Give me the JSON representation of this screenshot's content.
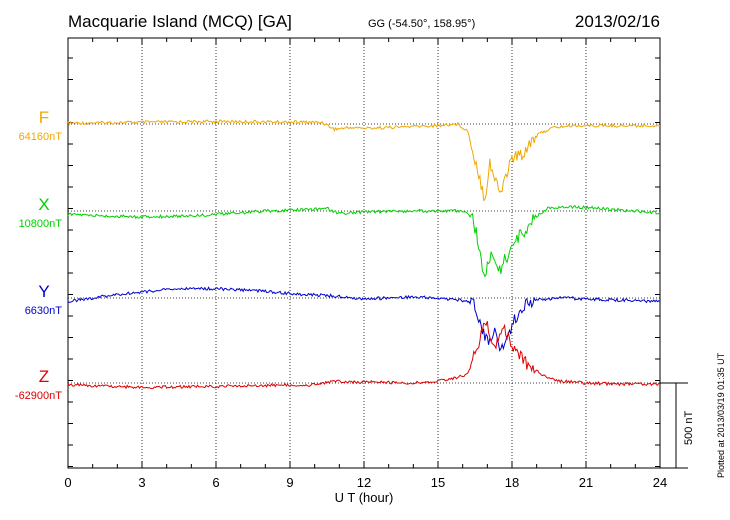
{
  "header": {
    "station": "Macquarie Island (MCQ)  [GA]",
    "coords": "GG (-54.50°, 158.95°)",
    "date": "2013/02/16"
  },
  "footer": {
    "plotted": "Plotted at 2013/03/19 01:35 UT"
  },
  "chart_data": {
    "type": "line",
    "xlabel": "U T (hour)",
    "xlim": [
      0,
      24
    ],
    "xticks": [
      "0",
      "3",
      "6",
      "9",
      "12",
      "15",
      "18",
      "21",
      "24"
    ],
    "scale_bar": {
      "label": "500 nT",
      "value_nT": 500
    },
    "grid": true,
    "series": [
      {
        "name": "F",
        "baseline_label": "64160nT",
        "baseline_nT": 64160,
        "color": "#f0a800",
        "points": [
          [
            0,
            5
          ],
          [
            3,
            10
          ],
          [
            6,
            15
          ],
          [
            9,
            12
          ],
          [
            10.3,
            10
          ],
          [
            10.8,
            -30
          ],
          [
            11.5,
            -20
          ],
          [
            12,
            -25
          ],
          [
            14,
            -15
          ],
          [
            15,
            -10
          ],
          [
            15.8,
            0
          ],
          [
            16.2,
            -40
          ],
          [
            16.6,
            -260
          ],
          [
            16.9,
            -440
          ],
          [
            17.1,
            -220
          ],
          [
            17.3,
            -330
          ],
          [
            17.55,
            -400
          ],
          [
            17.75,
            -300
          ],
          [
            18,
            -200
          ],
          [
            18.4,
            -180
          ],
          [
            18.8,
            -90
          ],
          [
            19.2,
            -50
          ],
          [
            19.7,
            -20
          ],
          [
            20.5,
            -10
          ],
          [
            24,
            -10
          ]
        ]
      },
      {
        "name": "X",
        "baseline_label": "10800nT",
        "baseline_nT": 10800,
        "color": "#00d000",
        "points": [
          [
            0,
            -20
          ],
          [
            1.5,
            -30
          ],
          [
            3,
            -35
          ],
          [
            4.5,
            -30
          ],
          [
            6,
            -20
          ],
          [
            8,
            0
          ],
          [
            9,
            5
          ],
          [
            10.5,
            15
          ],
          [
            11,
            -15
          ],
          [
            12,
            -5
          ],
          [
            14,
            0
          ],
          [
            15,
            0
          ],
          [
            16,
            0
          ],
          [
            16.4,
            -40
          ],
          [
            16.7,
            -230
          ],
          [
            16.9,
            -400
          ],
          [
            17.1,
            -270
          ],
          [
            17.3,
            -300
          ],
          [
            17.55,
            -330
          ],
          [
            17.8,
            -270
          ],
          [
            18.1,
            -180
          ],
          [
            18.5,
            -120
          ],
          [
            19,
            -30
          ],
          [
            19.5,
            20
          ],
          [
            20.5,
            25
          ],
          [
            22,
            10
          ],
          [
            24,
            -10
          ]
        ]
      },
      {
        "name": "Y",
        "baseline_label": "6630nT",
        "baseline_nT": 6630,
        "color": "#0000d0",
        "points": [
          [
            0,
            -20
          ],
          [
            2,
            20
          ],
          [
            4,
            50
          ],
          [
            5,
            55
          ],
          [
            6,
            55
          ],
          [
            8,
            40
          ],
          [
            9.5,
            20
          ],
          [
            10.5,
            15
          ],
          [
            12,
            -5
          ],
          [
            14,
            5
          ],
          [
            15,
            0
          ],
          [
            16,
            -15
          ],
          [
            16.5,
            -40
          ],
          [
            16.8,
            -200
          ],
          [
            17.1,
            -260
          ],
          [
            17.3,
            -170
          ],
          [
            17.55,
            -300
          ],
          [
            17.75,
            -280
          ],
          [
            18,
            -160
          ],
          [
            18.4,
            -50
          ],
          [
            19,
            -10
          ],
          [
            20,
            0
          ],
          [
            22,
            -10
          ],
          [
            24,
            -20
          ]
        ]
      },
      {
        "name": "Z",
        "baseline_label": "-62900nT",
        "baseline_nT": -62900,
        "color": "#e00000",
        "points": [
          [
            0,
            -10
          ],
          [
            3,
            -25
          ],
          [
            6,
            -20
          ],
          [
            8,
            -15
          ],
          [
            10,
            -10
          ],
          [
            10.8,
            10
          ],
          [
            12,
            5
          ],
          [
            14,
            0
          ],
          [
            15.5,
            20
          ],
          [
            16.2,
            50
          ],
          [
            16.7,
            250
          ],
          [
            16.9,
            380
          ],
          [
            17.1,
            300
          ],
          [
            17.35,
            200
          ],
          [
            17.6,
            350
          ],
          [
            17.8,
            280
          ],
          [
            18.1,
            180
          ],
          [
            18.7,
            100
          ],
          [
            19.3,
            40
          ],
          [
            20,
            10
          ],
          [
            21,
            0
          ],
          [
            22,
            -5
          ],
          [
            24,
            -5
          ]
        ]
      }
    ]
  }
}
